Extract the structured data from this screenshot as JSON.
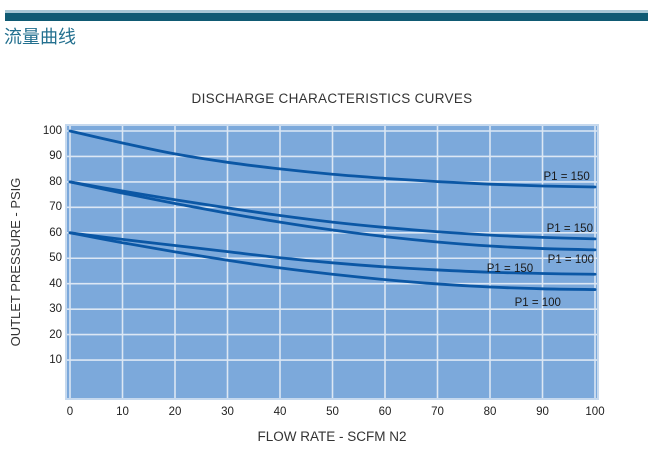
{
  "page": {
    "heading": "流量曲线"
  },
  "colors": {
    "divider_bar": "#0f5a73",
    "divider_bar_highlight": "#a6c6d4",
    "heading_text": "#23708f",
    "plot_background": "#7ca9db",
    "plot_border": "#c6d9ee",
    "gridline": "#dce7f4",
    "curve": "#0b57a5",
    "text": "#333333"
  },
  "chart_data": {
    "type": "line",
    "title": "DISCHARGE CHARACTERISTICS CURVES",
    "xlabel": "FLOW RATE - SCFM N2",
    "ylabel": "OUTLET PRESSURE - PSIG",
    "xlim": [
      0,
      100
    ],
    "ylim": [
      0,
      100
    ],
    "x_ticks": [
      0,
      10,
      20,
      30,
      40,
      50,
      60,
      70,
      80,
      90,
      100
    ],
    "y_ticks": [
      10,
      20,
      30,
      40,
      50,
      60,
      70,
      80,
      90,
      100
    ],
    "grid": true,
    "legend_position": "inline-annotations",
    "x": [
      0,
      10,
      20,
      30,
      40,
      50,
      60,
      70,
      80,
      90,
      100
    ],
    "series": [
      {
        "label": "P1 = 150",
        "values": [
          100,
          95.3,
          91,
          87.7,
          85.1,
          83,
          81.4,
          80.1,
          79.1,
          78.4,
          78
        ]
      },
      {
        "label": "P1 = 150",
        "values": [
          80,
          76.4,
          73,
          69.8,
          66.8,
          64.2,
          62.1,
          60.4,
          59.1,
          58.2,
          57.6
        ]
      },
      {
        "label": "P1 = 100",
        "values": [
          80,
          75.6,
          71.5,
          67.7,
          64.2,
          61.1,
          58.5,
          56.4,
          54.8,
          53.8,
          53.3
        ]
      },
      {
        "label": "P1 = 150",
        "values": [
          60,
          57.4,
          55,
          52.6,
          50.2,
          48.2,
          46.6,
          45.4,
          44.5,
          44,
          43.7
        ]
      },
      {
        "label": "P1 = 100",
        "values": [
          60,
          56.1,
          52.5,
          49.2,
          46.2,
          43.7,
          41.6,
          39.9,
          38.7,
          38,
          37.7
        ]
      }
    ],
    "annotations": [
      {
        "text": "P1 = 150",
        "flow": 94.6,
        "psig": 82.4
      },
      {
        "text": "P1 = 150",
        "flow": 95.2,
        "psig": 61.9
      },
      {
        "text": "P1 = 100",
        "flow": 95.4,
        "psig": 49.7
      },
      {
        "text": "P1 = 150",
        "flow": 83.8,
        "psig": 46.1
      },
      {
        "text": "P1 = 100",
        "flow": 89.1,
        "psig": 32.8
      }
    ]
  }
}
